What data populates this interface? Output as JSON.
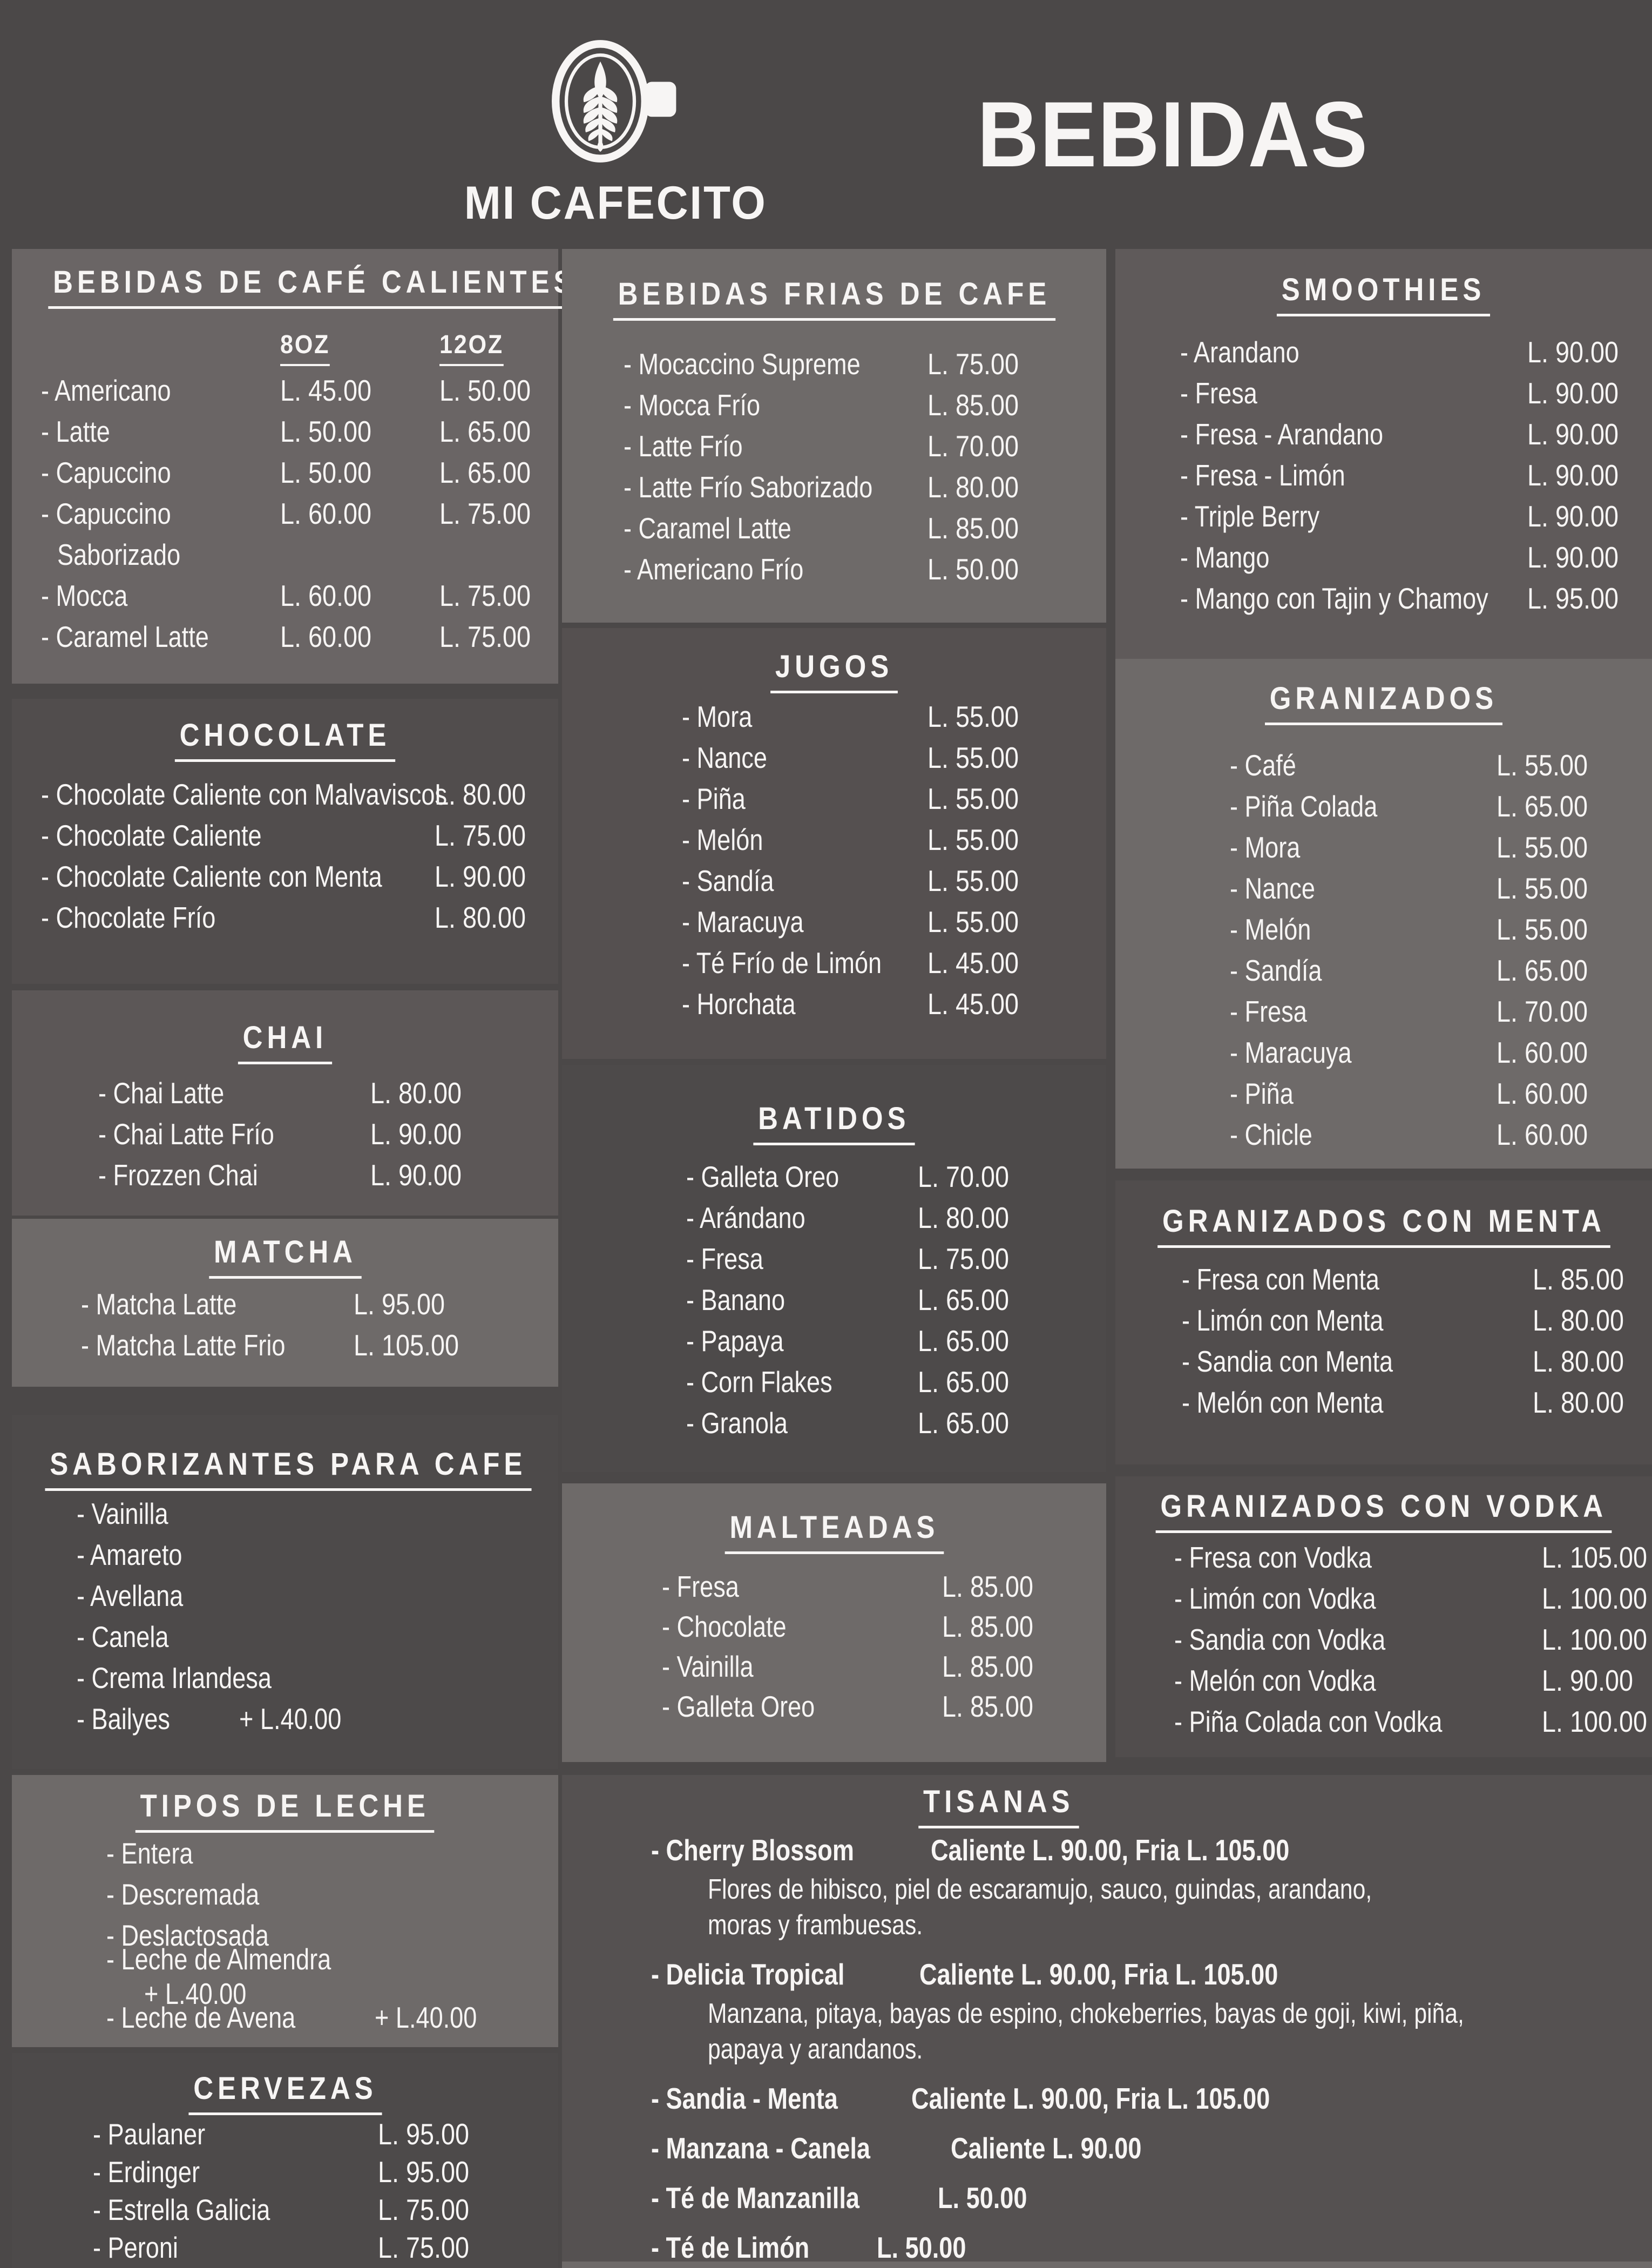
{
  "header": {
    "brand": "MI CAFECITO",
    "title": "BEBIDAS",
    "logo_icon": "latte-art-cup-icon"
  },
  "colors": {
    "page_bg": "#4b4848",
    "panel_dark": "#4d4a4a",
    "panel_mid": "#5c5757",
    "panel_light": "#6e6a69",
    "smoothies_bg": "#5f5a5a",
    "jugos_bg": "#555050",
    "tisanas_bg": "#555151",
    "text": "#f7f5f4"
  },
  "sections": [
    {
      "id": "cafe-calientes",
      "title": "BEBIDAS DE CAFÉ CALIENTES",
      "size_headers": [
        "8OZ",
        "12OZ"
      ],
      "items": [
        {
          "name": "Americano",
          "price8": "L. 45.00",
          "price12": "L. 50.00"
        },
        {
          "name": "Latte",
          "price8": "L. 50.00",
          "price12": "L. 65.00"
        },
        {
          "name": "Capuccino",
          "price8": "L. 50.00",
          "price12": "L. 65.00"
        },
        {
          "name": "Capuccino",
          "sub": "Saborizado",
          "price8": "L. 60.00",
          "price12": "L. 75.00"
        },
        {
          "name": "Mocca",
          "price8": "L. 60.00",
          "price12": "L. 75.00"
        },
        {
          "name": "Caramel Latte",
          "price8": "L. 60.00",
          "price12": "L. 75.00"
        }
      ]
    },
    {
      "id": "chocolate",
      "title": "CHOCOLATE",
      "items": [
        {
          "name": "Chocolate Caliente con Malvaviscos",
          "price": "L. 80.00"
        },
        {
          "name": "Chocolate Caliente",
          "price": "L. 75.00"
        },
        {
          "name": "Chocolate Caliente con Menta",
          "price": "L. 90.00"
        },
        {
          "name": "Chocolate Frío",
          "price": "L. 80.00"
        }
      ]
    },
    {
      "id": "chai",
      "title": "CHAI",
      "items": [
        {
          "name": "Chai Latte",
          "price": "L. 80.00"
        },
        {
          "name": "Chai Latte Frío",
          "price": "L. 90.00"
        },
        {
          "name": "Frozzen Chai",
          "price": "L. 90.00"
        }
      ]
    },
    {
      "id": "matcha",
      "title": "MATCHA",
      "items": [
        {
          "name": "Matcha Latte",
          "price": "L. 95.00"
        },
        {
          "name": "Matcha Latte Frio",
          "price": "L. 105.00"
        }
      ]
    },
    {
      "id": "saborizantes",
      "title": "SABORIZANTES PARA CAFE",
      "items": [
        {
          "name": "Vainilla"
        },
        {
          "name": "Amareto"
        },
        {
          "name": "Avellana"
        },
        {
          "name": "Canela"
        },
        {
          "name": "Crema Irlandesa"
        },
        {
          "name": "Bailyes",
          "note": "+ L.40.00"
        }
      ]
    },
    {
      "id": "tipos-de-leche",
      "title": "TIPOS DE LECHE",
      "items": [
        {
          "name": "Entera"
        },
        {
          "name": "Descremada"
        },
        {
          "name": "Deslactosada"
        },
        {
          "name": "Leche de Almendra",
          "note": "+ L.40.00"
        },
        {
          "name": "Leche de Avena",
          "note": "+ L.40.00"
        }
      ]
    },
    {
      "id": "cervezas",
      "title": "CERVEZAS",
      "items": [
        {
          "name": "Paulaner",
          "price": "L. 95.00"
        },
        {
          "name": "Erdinger",
          "price": "L. 95.00"
        },
        {
          "name": "Estrella Galicia",
          "price": "L. 75.00"
        },
        {
          "name": "Peroni",
          "price": "L. 75.00"
        }
      ]
    },
    {
      "id": "bebidas-frias",
      "title": "BEBIDAS FRIAS DE CAFE",
      "items": [
        {
          "name": "Mocaccino Supreme",
          "price": "L. 75.00"
        },
        {
          "name": "Mocca Frío",
          "price": "L. 85.00"
        },
        {
          "name": "Latte Frío",
          "price": "L. 70.00"
        },
        {
          "name": "Latte Frío Saborizado",
          "price": "L. 80.00"
        },
        {
          "name": "Caramel Latte",
          "price": "L. 85.00"
        },
        {
          "name": "Americano Frío",
          "price": "L. 50.00"
        }
      ]
    },
    {
      "id": "jugos",
      "title": "JUGOS",
      "items": [
        {
          "name": "Mora",
          "price": "L. 55.00"
        },
        {
          "name": "Nance",
          "price": "L. 55.00"
        },
        {
          "name": "Piña",
          "price": "L. 55.00"
        },
        {
          "name": "Melón",
          "price": "L. 55.00"
        },
        {
          "name": "Sandía",
          "price": "L. 55.00"
        },
        {
          "name": "Maracuya",
          "price": "L. 55.00"
        },
        {
          "name": "Té Frío de Limón",
          "price": "L. 45.00"
        },
        {
          "name": "Horchata",
          "price": "L. 45.00"
        }
      ]
    },
    {
      "id": "batidos",
      "title": "BATIDOS",
      "items": [
        {
          "name": "Galleta Oreo",
          "price": "L. 70.00"
        },
        {
          "name": "Arándano",
          "price": "L. 80.00"
        },
        {
          "name": "Fresa",
          "price": "L. 75.00"
        },
        {
          "name": "Banano",
          "price": "L. 65.00"
        },
        {
          "name": "Papaya",
          "price": "L. 65.00"
        },
        {
          "name": "Corn Flakes",
          "price": "L. 65.00"
        },
        {
          "name": "Granola",
          "price": "L. 65.00"
        }
      ]
    },
    {
      "id": "malteadas",
      "title": "MALTEADAS",
      "items": [
        {
          "name": "Fresa",
          "price": "L. 85.00"
        },
        {
          "name": "Chocolate",
          "price": "L. 85.00"
        },
        {
          "name": "Vainilla",
          "price": "L. 85.00"
        },
        {
          "name": "Galleta Oreo",
          "price": "L. 85.00"
        }
      ]
    },
    {
      "id": "smoothies",
      "title": "SMOOTHIES",
      "items": [
        {
          "name": "Arandano",
          "price": "L. 90.00"
        },
        {
          "name": "Fresa",
          "price": "L. 90.00"
        },
        {
          "name": "Fresa - Arandano",
          "price": "L. 90.00"
        },
        {
          "name": "Fresa - Limón",
          "price": "L. 90.00"
        },
        {
          "name": "Triple Berry",
          "price": "L. 90.00"
        },
        {
          "name": "Mango",
          "price": "L. 90.00"
        },
        {
          "name": "Mango con Tajin y Chamoy",
          "price": "L. 95.00"
        }
      ]
    },
    {
      "id": "granizados",
      "title": "GRANIZADOS",
      "items": [
        {
          "name": "Café",
          "price": "L. 55.00"
        },
        {
          "name": "Piña Colada",
          "price": "L. 65.00"
        },
        {
          "name": "Mora",
          "price": "L. 55.00"
        },
        {
          "name": "Nance",
          "price": "L. 55.00"
        },
        {
          "name": "Melón",
          "price": "L. 55.00"
        },
        {
          "name": "Sandía",
          "price": "L. 65.00"
        },
        {
          "name": "Fresa",
          "price": "L. 70.00"
        },
        {
          "name": "Maracuya",
          "price": "L. 60.00"
        },
        {
          "name": "Piña",
          "price": "L. 60.00"
        },
        {
          "name": "Chicle",
          "price": "L. 60.00"
        }
      ]
    },
    {
      "id": "granizados-con-menta",
      "title": "GRANIZADOS CON MENTA",
      "items": [
        {
          "name": "Fresa con Menta",
          "price": "L. 85.00"
        },
        {
          "name": "Limón con Menta",
          "price": "L. 80.00"
        },
        {
          "name": "Sandia con Menta",
          "price": "L. 80.00"
        },
        {
          "name": "Melón con Menta",
          "price": "L. 80.00"
        }
      ]
    },
    {
      "id": "granizados-con-vodka",
      "title": "GRANIZADOS CON VODKA",
      "items": [
        {
          "name": "Fresa con Vodka",
          "price": "L. 105.00"
        },
        {
          "name": "Limón con Vodka",
          "price": "L. 100.00"
        },
        {
          "name": "Sandia con Vodka",
          "price": "L. 100.00"
        },
        {
          "name": "Melón con Vodka",
          "price": "L. 90.00"
        },
        {
          "name": "Piña Colada con Vodka",
          "price": "L. 100.00"
        }
      ]
    },
    {
      "id": "tisanas",
      "title": "TISANAS",
      "items": [
        {
          "name": "Cherry Blossom",
          "price_text": "Caliente L. 90.00,  Fria L. 105.00",
          "desc": [
            "Flores de hibisco, piel de escaramujo, sauco, guindas, arandano,",
            "moras y frambuesas."
          ]
        },
        {
          "name": "Delicia Tropical",
          "price_text": "Caliente L. 90.00,  Fria L. 105.00",
          "desc": [
            "Manzana, pitaya, bayas de espino, chokeberries, bayas de goji,  kiwi, piña,",
            "papaya y arandanos."
          ]
        },
        {
          "name": "Sandia - Menta",
          "price_text": "Caliente L. 90.00,  Fria L. 105.00"
        },
        {
          "name": "Manzana - Canela",
          "price_text": "Caliente  L. 90.00"
        },
        {
          "name": "Té de Manzanilla",
          "price_text": "L. 50.00"
        },
        {
          "name": "Té de Limón",
          "price_text": "L. 50.00"
        }
      ]
    }
  ]
}
